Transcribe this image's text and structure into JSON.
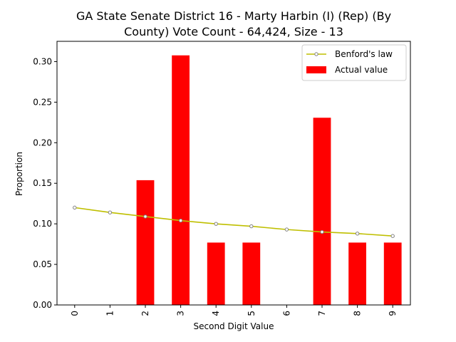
{
  "chart_data": {
    "type": "bar",
    "title_lines": [
      "GA State Senate District 16 - Marty Harbin (I) (Rep) (By",
      "County) Vote Count - 64,424, Size - 13"
    ],
    "xlabel": "Second Digit Value",
    "ylabel": "Proportion",
    "categories": [
      "0",
      "1",
      "2",
      "3",
      "4",
      "5",
      "6",
      "7",
      "8",
      "9"
    ],
    "ylim": [
      0,
      0.325
    ],
    "yticks": [
      "0.00",
      "0.05",
      "0.10",
      "0.15",
      "0.20",
      "0.25",
      "0.30"
    ],
    "series": [
      {
        "name": "Benford's law",
        "kind": "line",
        "color": "#bfbf00",
        "marker_edge": "#808080",
        "values": [
          0.12,
          0.114,
          0.109,
          0.104,
          0.1,
          0.097,
          0.093,
          0.09,
          0.088,
          0.085
        ]
      },
      {
        "name": "Actual value",
        "kind": "bar",
        "color": "#ff0000",
        "values": [
          0.0,
          0.0,
          0.1538,
          0.3077,
          0.0769,
          0.0769,
          0.0,
          0.2308,
          0.0769,
          0.0769
        ]
      }
    ],
    "legend_position": "upper-right",
    "grid": false
  }
}
